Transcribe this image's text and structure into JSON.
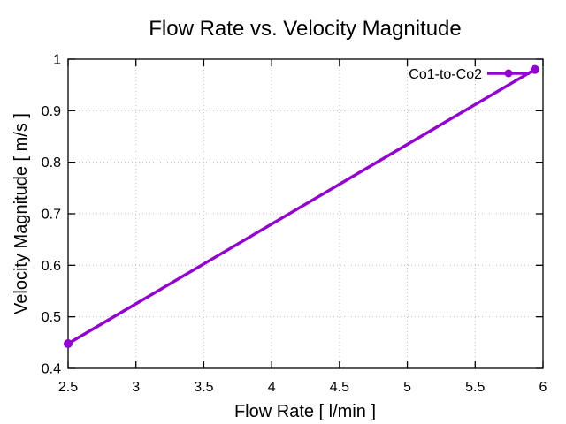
{
  "chart_data": {
    "type": "line",
    "title": "Flow Rate vs. Velocity Magnitude",
    "xlabel": "Flow Rate [ l/min ]",
    "ylabel": "Velocity Magnitude [ m/s ]",
    "xlim": [
      2.5,
      6
    ],
    "ylim": [
      0.4,
      1
    ],
    "xticks": [
      2.5,
      3,
      3.5,
      4,
      4.5,
      5,
      5.5,
      6
    ],
    "yticks": [
      0.4,
      0.5,
      0.6,
      0.7,
      0.8,
      0.9,
      1
    ],
    "grid": "dotted",
    "legend_position": "top-right-inside",
    "series": [
      {
        "name": "Co1-to-Co2",
        "color": "#9400d3",
        "marker": "filled-circle",
        "line_style": "solid",
        "points": [
          [
            2.5,
            0.448
          ],
          [
            5.94,
            0.98
          ]
        ]
      }
    ]
  },
  "colors": {
    "background": "#ffffff",
    "text": "#000000",
    "frame": "#000000",
    "grid": "#bfbfbf",
    "accent": "#9400d3"
  }
}
